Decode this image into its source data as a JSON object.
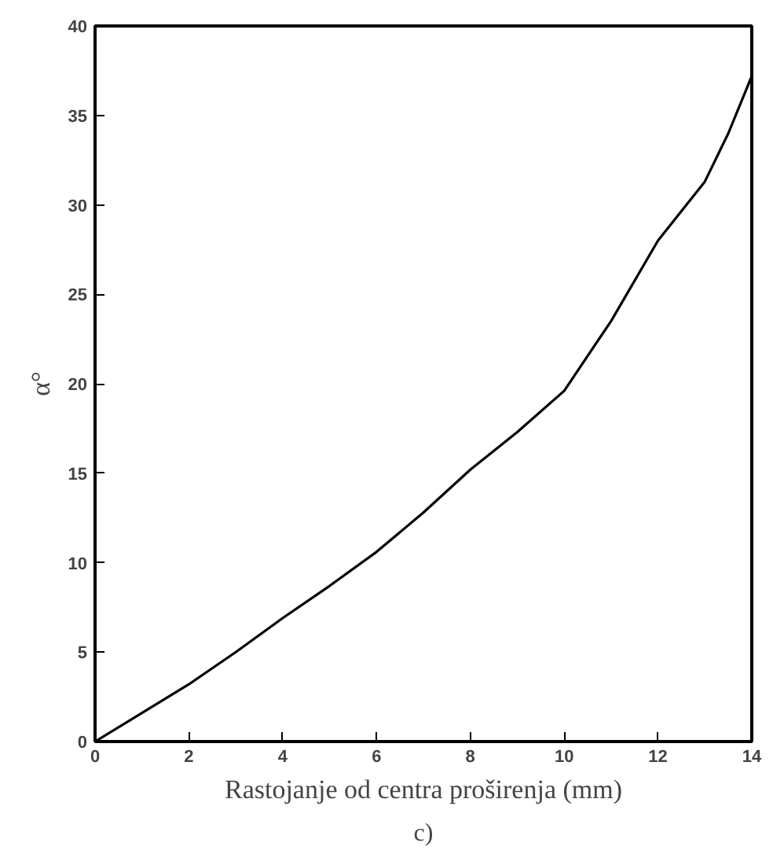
{
  "chart_data": {
    "type": "line",
    "xlabel": "Rastojanje od centra proširenja (mm)",
    "ylabel": "α°",
    "x": [
      0,
      1,
      2,
      3,
      4,
      5,
      6,
      7,
      8,
      9,
      10,
      11,
      12,
      13,
      13.5,
      14
    ],
    "series": [
      {
        "color": "#000000",
        "values": [
          0,
          1.6,
          3.2,
          5.0,
          6.9,
          8.7,
          10.6,
          12.8,
          15.2,
          17.3,
          19.6,
          23.5,
          28.0,
          31.3,
          34.0,
          37.2
        ]
      }
    ],
    "xlim": [
      0,
      14
    ],
    "ylim": [
      0,
      40
    ],
    "xticks": [
      0,
      2,
      4,
      6,
      8,
      10,
      12,
      14
    ],
    "yticks": [
      0,
      5,
      10,
      15,
      20,
      25,
      30,
      35,
      40
    ],
    "grid": false,
    "marker": "none",
    "line_style": "solid",
    "annotations": [
      "c)"
    ]
  }
}
